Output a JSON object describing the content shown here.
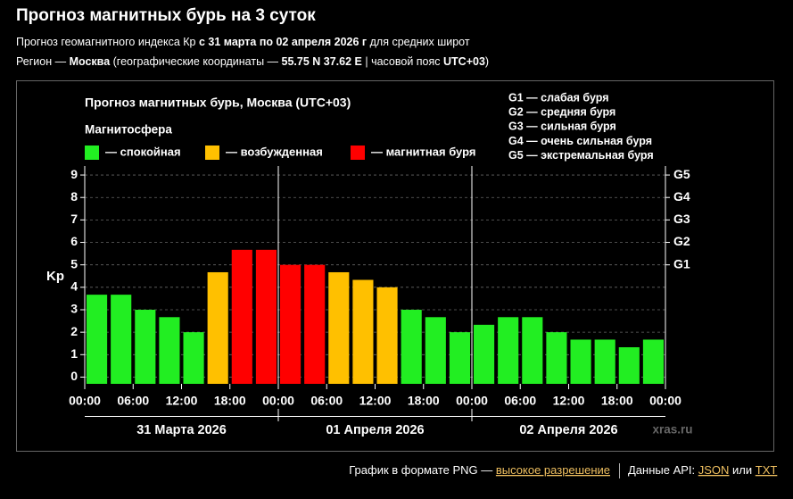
{
  "page_title": "Прогноз магнитных бурь на 3 суток",
  "subtitle_lines": [
    [
      {
        "text": "Прогноз геомагнитного индекса Кр ",
        "bold": false
      },
      {
        "text": "с 31 марта по 02 апреля 2026 г",
        "bold": true
      },
      {
        "text": " для средних широт",
        "bold": false
      }
    ],
    [
      {
        "text": "Регион — ",
        "bold": false
      },
      {
        "text": "Москва",
        "bold": true
      },
      {
        "text": " (географические координаты — ",
        "bold": false
      },
      {
        "text": "55.75 N 37.62 E",
        "bold": true
      },
      {
        "text": " | часовой пояс ",
        "bold": false
      },
      {
        "text": "UTC+03",
        "bold": true
      },
      {
        "text": ")",
        "bold": false
      }
    ]
  ],
  "chart_data": {
    "type": "bar",
    "title": "Прогноз магнитных бурь, Москва (UTC+03)",
    "legend_title": "Магнитосфера",
    "legend": [
      {
        "label": "— спокойная",
        "color": "#22ee22"
      },
      {
        "label": "— возбужденная",
        "color": "#ffc000"
      },
      {
        "label": "— магнитная буря",
        "color": "#ff0000"
      }
    ],
    "storm_levels": [
      "G1 — слабая буря",
      "G2 — средняя буря",
      "G3 — сильная буря",
      "G4 — очень сильная буря",
      "G5 — экстремальная буря"
    ],
    "y_label": "Kp",
    "values": [
      3.67,
      3.67,
      3.0,
      2.67,
      2.0,
      4.67,
      5.67,
      5.67,
      5.0,
      5.0,
      4.67,
      4.33,
      4.0,
      3.0,
      2.67,
      2.0,
      2.33,
      2.67,
      2.67,
      2.0,
      1.67,
      1.67,
      1.33,
      1.67
    ],
    "colors": [
      "#22ee22",
      "#22ee22",
      "#22ee22",
      "#22ee22",
      "#22ee22",
      "#ffc000",
      "#ff0000",
      "#ff0000",
      "#ff0000",
      "#ff0000",
      "#ffc000",
      "#ffc000",
      "#ffc000",
      "#22ee22",
      "#22ee22",
      "#22ee22",
      "#22ee22",
      "#22ee22",
      "#22ee22",
      "#22ee22",
      "#22ee22",
      "#22ee22",
      "#22ee22",
      "#22ee22"
    ],
    "xlim": [
      0,
      24
    ],
    "xticks": [
      {
        "value": 0,
        "label": "00:00"
      },
      {
        "value": 2,
        "label": "06:00"
      },
      {
        "value": 4,
        "label": "12:00"
      },
      {
        "value": 6,
        "label": "18:00"
      },
      {
        "value": 8,
        "label": "00:00"
      },
      {
        "value": 10,
        "label": "06:00"
      },
      {
        "value": 12,
        "label": "12:00"
      },
      {
        "value": 14,
        "label": "18:00"
      },
      {
        "value": 16,
        "label": "00:00"
      },
      {
        "value": 18,
        "label": "06:00"
      },
      {
        "value": 20,
        "label": "12:00"
      },
      {
        "value": 22,
        "label": "18:00"
      },
      {
        "value": 24,
        "label": "00:00"
      }
    ],
    "days": [
      "31 Марта 2026",
      "01 Апреля 2026",
      "02 Апреля 2026"
    ],
    "ylim": [
      -0.3,
      9.4
    ],
    "yticks": [
      0,
      1,
      2,
      3,
      4,
      5,
      6,
      7,
      8,
      9
    ],
    "y2lim": [
      -0.3,
      9.4
    ],
    "y2ticks": [
      {
        "value": 5,
        "label": "G1"
      },
      {
        "value": 6,
        "label": "G2"
      },
      {
        "value": 7,
        "label": "G3"
      },
      {
        "value": 8,
        "label": "G4"
      },
      {
        "value": 9,
        "label": "G5"
      }
    ],
    "grid": true,
    "watermark": "xras.ru"
  },
  "footer": {
    "text": "График в формате PNG — ",
    "link": "высокое разрешение",
    "api_text": "Данные API: ",
    "json": "JSON",
    "or": " или ",
    "txt": "TXT"
  }
}
